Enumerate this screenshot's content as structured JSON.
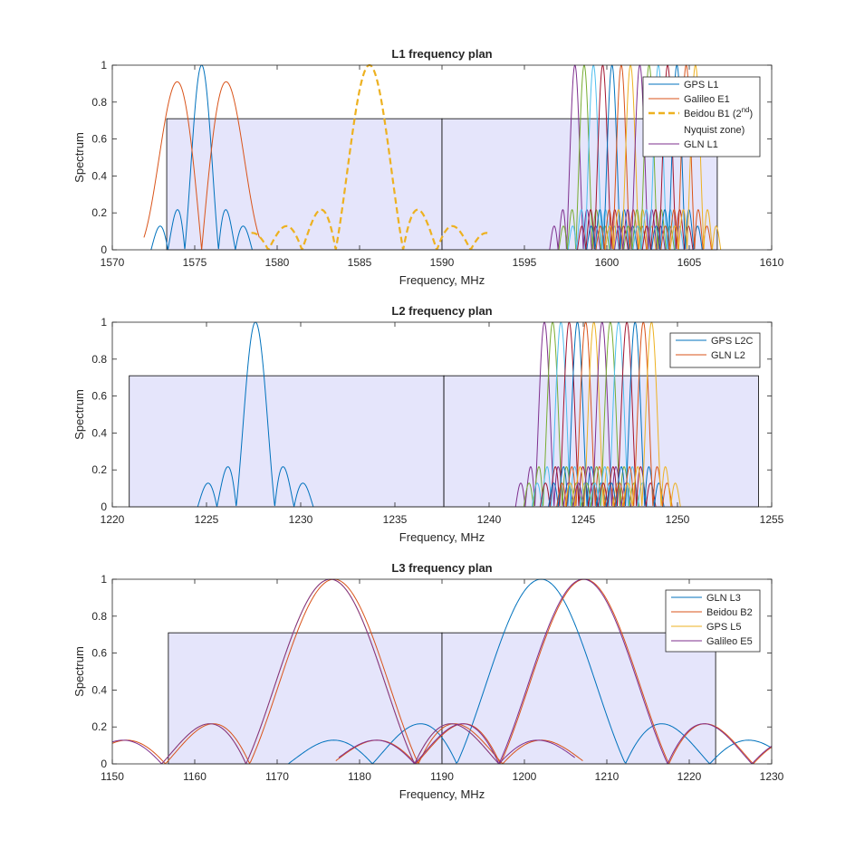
{
  "chart_data": [
    {
      "type": "line",
      "title": "L1 frequency plan",
      "xlabel": "Frequency, MHz",
      "ylabel": "Spectrum",
      "xlim": [
        1570,
        1610
      ],
      "ylim": [
        0,
        1
      ],
      "xticks": [
        1570,
        1575,
        1580,
        1585,
        1590,
        1595,
        1600,
        1605,
        1610
      ],
      "yticks": [
        0,
        0.2,
        0.4,
        0.6,
        0.8,
        1
      ],
      "yticklabels": [
        "0",
        "0.2",
        "0.4",
        "0.6",
        "0.8",
        "1"
      ],
      "band_boxes": [
        {
          "x0": 1573.3,
          "x1": 1590.0,
          "height": 0.71
        },
        {
          "x0": 1590.0,
          "x1": 1606.7,
          "height": 0.71
        }
      ],
      "legend_position": "top-right",
      "legend": [
        {
          "label": "GPS L1",
          "color": "#0072BD"
        },
        {
          "label": "Galileo E1",
          "color": "#D95319"
        },
        {
          "label": "Beidou B1 (2",
          "sup": "nd",
          "label_line2": "Nyquist zone)",
          "color": "#EDB120",
          "dashed": true
        },
        {
          "label": "GLN L1",
          "color": "#7E2F8E"
        }
      ],
      "series": [
        {
          "name": "GPS L1",
          "kind": "sinc",
          "center": 1575.42,
          "halfwidth": 1.023,
          "peak": 1.0,
          "sidelobes": 2,
          "color": "#0072BD"
        },
        {
          "name": "Galileo E1",
          "kind": "boc",
          "center": 1575.42,
          "peak_offset": 1.0,
          "peak": 0.91,
          "sidelobes": 1.5,
          "color": "#D95319"
        },
        {
          "name": "Beidou B1 (2nd Nyquist zone)",
          "kind": "sinc",
          "center": 1585.6,
          "halfwidth": 2.046,
          "peak": 1.0,
          "sidelobes": 2.5,
          "color": "#EDB120",
          "dashed": true
        },
        {
          "name": "GLN L1",
          "kind": "glonass",
          "channels": [
            1598.0625,
            1598.625,
            1599.1875,
            1599.75,
            1600.3125,
            1600.875,
            1601.4375,
            1602.0,
            1602.5625,
            1603.125,
            1603.6875,
            1604.25,
            1604.8125,
            1605.375
          ],
          "halfwidth": 0.511,
          "peak": 1.0,
          "sidelobes": 2
        }
      ]
    },
    {
      "type": "line",
      "title": "L2 frequency plan",
      "xlabel": "Frequency, MHz",
      "ylabel": "Spectrum",
      "xlim": [
        1220,
        1255
      ],
      "ylim": [
        0,
        1
      ],
      "xticks": [
        1220,
        1225,
        1230,
        1235,
        1240,
        1245,
        1250,
        1255
      ],
      "yticks": [
        0,
        0.2,
        0.4,
        0.6,
        0.8,
        1
      ],
      "yticklabels": [
        "0",
        "0.2",
        "0.4",
        "0.6",
        "0.8",
        "1"
      ],
      "band_boxes": [
        {
          "x0": 1220.9,
          "x1": 1237.6,
          "height": 0.71
        },
        {
          "x0": 1237.6,
          "x1": 1254.3,
          "height": 0.71
        }
      ],
      "legend_position": "top-right",
      "legend": [
        {
          "label": "GPS L2C",
          "color": "#0072BD"
        },
        {
          "label": "GLN L2",
          "color": "#D95319"
        }
      ],
      "series": [
        {
          "name": "GPS L2C",
          "kind": "sinc",
          "center": 1227.6,
          "halfwidth": 1.023,
          "peak": 1.0,
          "sidelobes": 2,
          "color": "#0072BD"
        },
        {
          "name": "GLN L2",
          "kind": "glonass",
          "channels": [
            1242.9375,
            1243.375,
            1243.8125,
            1244.25,
            1244.6875,
            1245.125,
            1245.5625,
            1246.0,
            1246.4375,
            1246.875,
            1247.3125,
            1247.75,
            1248.1875,
            1248.625
          ],
          "halfwidth": 0.511,
          "peak": 1.0,
          "sidelobes": 2
        }
      ]
    },
    {
      "type": "line",
      "title": "L3 frequency plan",
      "xlabel": "Frequency, MHz",
      "ylabel": "Spectrum",
      "xlim": [
        1150,
        1230
      ],
      "ylim": [
        0,
        1
      ],
      "xticks": [
        1150,
        1160,
        1170,
        1180,
        1190,
        1200,
        1210,
        1220,
        1230
      ],
      "yticks": [
        0,
        0.2,
        0.4,
        0.6,
        0.8,
        1
      ],
      "yticklabels": [
        "0",
        "0.2",
        "0.4",
        "0.6",
        "0.8",
        "1"
      ],
      "band_boxes": [
        {
          "x0": 1156.8,
          "x1": 1190.0,
          "height": 0.71
        },
        {
          "x0": 1190.0,
          "x1": 1223.2,
          "height": 0.71
        }
      ],
      "legend_position": "top-right",
      "legend": [
        {
          "label": "GLN L3",
          "color": "#0072BD"
        },
        {
          "label": "Beidou B2",
          "color": "#D95319"
        },
        {
          "label": "GPS L5",
          "color": "#EDB120"
        },
        {
          "label": "Galileo E5",
          "color": "#7E2F8E"
        }
      ],
      "series": [
        {
          "name": "GLN L3",
          "kind": "sinc",
          "center": 1202.025,
          "halfwidth": 10.23,
          "peak": 1.0,
          "sidelobes": 2,
          "color": "#0072BD"
        },
        {
          "name": "Beidou B2",
          "kind": "sincpair",
          "centers": [
            1176.9,
            1207.3
          ],
          "halfwidth": 10.23,
          "peak": 1.0,
          "sidelobes": 1.95,
          "color": "#D95319"
        },
        {
          "name": "GPS L5",
          "kind": "sinc",
          "center": 1176.45,
          "halfwidth": 10.23,
          "peak": 1.0,
          "sidelobes": 1.0,
          "color": "#EDB120"
        },
        {
          "name": "Galileo E5",
          "kind": "sincpair",
          "centers": [
            1176.45,
            1207.14
          ],
          "halfwidth": 10.23,
          "peak": 1.0,
          "sidelobes": 1.9,
          "color": "#7E2F8E"
        }
      ]
    }
  ]
}
